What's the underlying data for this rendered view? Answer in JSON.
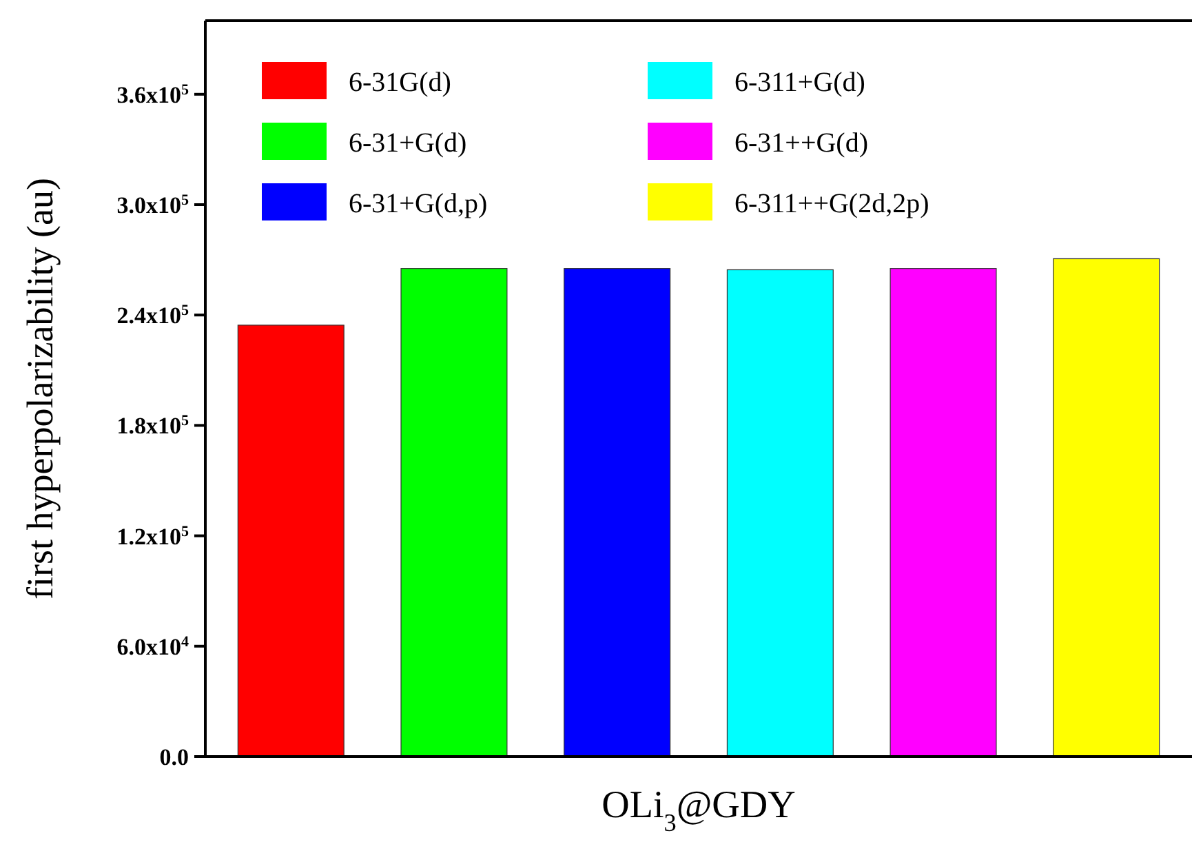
{
  "chart_data": {
    "type": "bar",
    "ylabel": "first hyperpolarizability (au)",
    "xlabel": "OLi$_{3}$@GDY",
    "categories": [
      null,
      null,
      null,
      null,
      null,
      null
    ],
    "series": [
      {
        "name": "6-31G(d)",
        "color": "#ff0000",
        "values": [
          234500,
          null,
          null,
          null,
          null,
          null
        ]
      },
      {
        "name": "6-31+G(d)",
        "color": "#00ff00",
        "values": [
          null,
          265300,
          null,
          null,
          null,
          null
        ]
      },
      {
        "name": "6-31+G(d,p)",
        "color": "#0000ff",
        "values": [
          null,
          null,
          265300,
          null,
          null,
          null
        ]
      },
      {
        "name": "6-311+G(d)",
        "color": "#00ffff",
        "values": [
          null,
          null,
          null,
          264600,
          null,
          null
        ]
      },
      {
        "name": "6-31++G(d)",
        "color": "#ff00ff",
        "values": [
          null,
          null,
          null,
          null,
          265300,
          null
        ]
      },
      {
        "name": "6-311++G(2d,2p)",
        "color": "#ffff00",
        "values": [
          null,
          null,
          null,
          null,
          null,
          270600
        ]
      }
    ],
    "ylim": [
      0,
      400000
    ],
    "yticks": [
      {
        "value": 0,
        "label": "0.0"
      },
      {
        "value": 60000,
        "label": "6.0x10$^{4}$"
      },
      {
        "value": 120000,
        "label": "1.2x10$^{5}$"
      },
      {
        "value": 180000,
        "label": "1.8x10$^{5}$"
      },
      {
        "value": 240000,
        "label": "2.4x10$^{5}$"
      },
      {
        "value": 300000,
        "label": "3.0x10$^{5}$"
      },
      {
        "value": 360000,
        "label": "3.6x10$^{5}$"
      }
    ],
    "legend": "top",
    "grid": false
  }
}
